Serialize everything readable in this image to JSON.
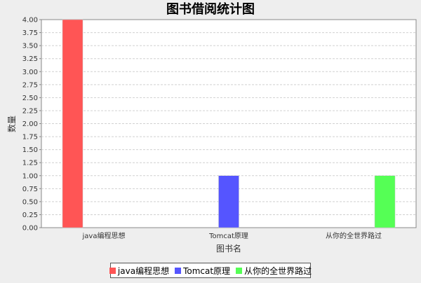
{
  "chart_data": {
    "type": "bar",
    "title": "图书借阅统计图",
    "xlabel": "图书名",
    "ylabel": "数量",
    "categories": [
      "java编程思想",
      "Tomcat原理",
      "从你的全世界路过"
    ],
    "series": [
      {
        "name": "java编程思想",
        "values": [
          4.0,
          null,
          null
        ],
        "color": "#ff5555"
      },
      {
        "name": "Tomcat原理",
        "values": [
          null,
          1.0,
          null
        ],
        "color": "#5555ff"
      },
      {
        "name": "从你的全世界路过",
        "values": [
          null,
          null,
          1.0
        ],
        "color": "#55ff55"
      }
    ],
    "ylim": [
      0,
      4.0
    ],
    "yticks": [
      "0.00",
      "0.25",
      "0.50",
      "0.75",
      "1.00",
      "1.25",
      "1.50",
      "1.75",
      "2.00",
      "2.25",
      "2.50",
      "2.75",
      "3.00",
      "3.25",
      "3.50",
      "3.75",
      "4.00"
    ],
    "grid": true,
    "legend_position": "bottom"
  }
}
